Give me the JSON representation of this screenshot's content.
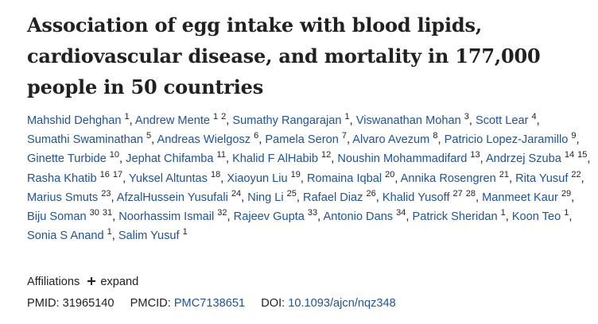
{
  "article": {
    "title": "Association of egg intake with blood lipids, cardiovascular disease, and mortality in 177,000 people in 50 countries"
  },
  "authors": [
    {
      "name": "Mahshid Dehghan",
      "affs": [
        "1"
      ]
    },
    {
      "name": "Andrew Mente",
      "affs": [
        "1",
        "2"
      ]
    },
    {
      "name": "Sumathy Rangarajan",
      "affs": [
        "1"
      ]
    },
    {
      "name": "Viswanathan Mohan",
      "affs": [
        "3"
      ]
    },
    {
      "name": "Scott Lear",
      "affs": [
        "4"
      ]
    },
    {
      "name": "Sumathi Swaminathan",
      "affs": [
        "5"
      ]
    },
    {
      "name": "Andreas Wielgosz",
      "affs": [
        "6"
      ]
    },
    {
      "name": "Pamela Seron",
      "affs": [
        "7"
      ]
    },
    {
      "name": "Alvaro Avezum",
      "affs": [
        "8"
      ]
    },
    {
      "name": "Patricio Lopez-Jaramillo",
      "affs": [
        "9"
      ]
    },
    {
      "name": "Ginette Turbide",
      "affs": [
        "10"
      ]
    },
    {
      "name": "Jephat Chifamba",
      "affs": [
        "11"
      ]
    },
    {
      "name": "Khalid F AlHabib",
      "affs": [
        "12"
      ]
    },
    {
      "name": "Noushin Mohammadifard",
      "affs": [
        "13"
      ]
    },
    {
      "name": "Andrzej Szuba",
      "affs": [
        "14",
        "15"
      ]
    },
    {
      "name": "Rasha Khatib",
      "affs": [
        "16",
        "17"
      ]
    },
    {
      "name": "Yuksel Altuntas",
      "affs": [
        "18"
      ]
    },
    {
      "name": "Xiaoyun Liu",
      "affs": [
        "19"
      ]
    },
    {
      "name": "Romaina Iqbal",
      "affs": [
        "20"
      ]
    },
    {
      "name": "Annika Rosengren",
      "affs": [
        "21"
      ]
    },
    {
      "name": "Rita Yusuf",
      "affs": [
        "22"
      ]
    },
    {
      "name": "Marius Smuts",
      "affs": [
        "23"
      ]
    },
    {
      "name": "AfzalHussein Yusufali",
      "affs": [
        "24"
      ]
    },
    {
      "name": "Ning Li",
      "affs": [
        "25"
      ]
    },
    {
      "name": "Rafael Diaz",
      "affs": [
        "26"
      ]
    },
    {
      "name": "Khalid Yusoff",
      "affs": [
        "27",
        "28"
      ]
    },
    {
      "name": "Manmeet Kaur",
      "affs": [
        "29"
      ]
    },
    {
      "name": "Biju Soman",
      "affs": [
        "30",
        "31"
      ]
    },
    {
      "name": "Noorhassim Ismail",
      "affs": [
        "32"
      ]
    },
    {
      "name": "Rajeev Gupta",
      "affs": [
        "33"
      ]
    },
    {
      "name": "Antonio Dans",
      "affs": [
        "34"
      ]
    },
    {
      "name": "Patrick Sheridan",
      "affs": [
        "1"
      ]
    },
    {
      "name": "Koon Teo",
      "affs": [
        "1"
      ]
    },
    {
      "name": "Sonia S Anand",
      "affs": [
        "1"
      ]
    },
    {
      "name": "Salim Yusuf",
      "affs": [
        "1"
      ]
    }
  ],
  "affiliations": {
    "label": "Affiliations",
    "expand_label": "expand",
    "expand_icon": "plus-icon"
  },
  "identifiers": {
    "pmid_label": "PMID:",
    "pmid_value": "31965140",
    "pmcid_label": "PMCID:",
    "pmcid_value": "PMC7138651",
    "doi_label": "DOI:",
    "doi_value": "10.1093/ajcn/nqz348"
  },
  "colors": {
    "link": "#205493",
    "text": "#212121",
    "background": "#ffffff"
  }
}
